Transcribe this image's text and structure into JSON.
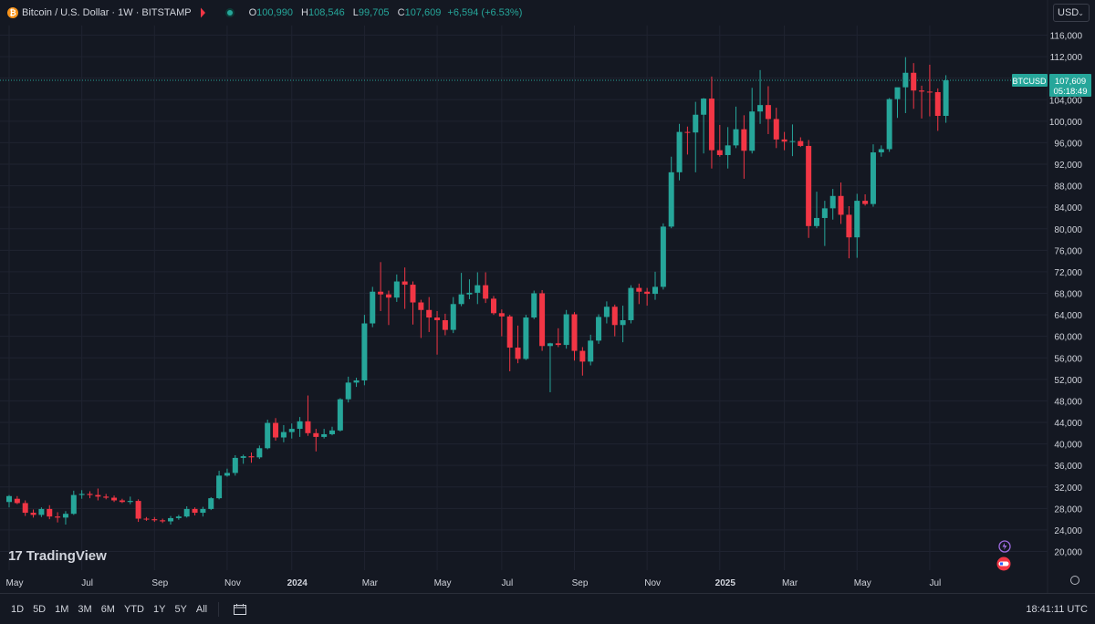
{
  "header": {
    "coin_icon": "bitcoin-icon",
    "symbol": "Bitcoin / U.S. Dollar · 1W · BITSTAMP",
    "ohlc": [
      {
        "key": "O",
        "value": "100,990"
      },
      {
        "key": "H",
        "value": "108,546"
      },
      {
        "key": "L",
        "value": "99,705"
      },
      {
        "key": "C",
        "value": "107,609"
      },
      {
        "key": "",
        "value": "+6,594 (+6.53%)"
      }
    ]
  },
  "currency": {
    "label": "USD"
  },
  "price_tag": {
    "symbol": "BTCUSD",
    "price": "107,609",
    "countdown": "05:18:49"
  },
  "logo": {
    "text": "TradingView"
  },
  "ranges": [
    "1D",
    "5D",
    "1M",
    "3M",
    "6M",
    "YTD",
    "1Y",
    "5Y",
    "All"
  ],
  "clock": "18:41:11 UTC",
  "colors": {
    "up": "#26a69a",
    "down": "#f23645",
    "background": "#141822",
    "grid": "#1f2330",
    "text": "#d1d4dc"
  },
  "chart_data": {
    "type": "candlestick",
    "title": "Bitcoin / U.S. Dollar · 1W · BITSTAMP",
    "ylim": [
      16000,
      120000
    ],
    "yticks": [
      20000,
      24000,
      28000,
      32000,
      36000,
      40000,
      44000,
      48000,
      52000,
      56000,
      60000,
      64000,
      68000,
      72000,
      76000,
      80000,
      84000,
      88000,
      92000,
      96000,
      100000,
      104000,
      108000,
      112000,
      116000
    ],
    "ytick_labels": [
      "20,000",
      "24,000",
      "28,000",
      "32,000",
      "36,000",
      "40,000",
      "44,000",
      "48,000",
      "52,000",
      "56,000",
      "60,000",
      "64,000",
      "68,000",
      "72,000",
      "76,000",
      "80,000",
      "84,000",
      "88,000",
      "92,000",
      "96,000",
      "100,000",
      "104,000",
      "108,000",
      "112,000",
      "116,000"
    ],
    "xtick_labels": [
      {
        "label": "May",
        "week": 0
      },
      {
        "label": "Jul",
        "week": 9
      },
      {
        "label": "Sep",
        "week": 18
      },
      {
        "label": "Nov",
        "week": 27
      },
      {
        "label": "2024",
        "week": 35
      },
      {
        "label": "Mar",
        "week": 44
      },
      {
        "label": "May",
        "week": 53
      },
      {
        "label": "Jul",
        "week": 61
      },
      {
        "label": "Sep",
        "week": 70
      },
      {
        "label": "Nov",
        "week": 79
      },
      {
        "label": "2025",
        "week": 88
      },
      {
        "label": "Mar",
        "week": 96
      },
      {
        "label": "May",
        "week": 105
      },
      {
        "label": "Jul",
        "week": 114
      }
    ],
    "last_price": 107609,
    "candles": [
      {
        "o": 29200,
        "h": 30500,
        "l": 28200,
        "c": 30300
      },
      {
        "o": 29800,
        "h": 30300,
        "l": 28800,
        "c": 29000
      },
      {
        "o": 29000,
        "h": 29500,
        "l": 26600,
        "c": 27200
      },
      {
        "o": 27200,
        "h": 27800,
        "l": 26300,
        "c": 26800
      },
      {
        "o": 26800,
        "h": 28200,
        "l": 26400,
        "c": 27900
      },
      {
        "o": 27900,
        "h": 28600,
        "l": 26000,
        "c": 26500
      },
      {
        "o": 26500,
        "h": 27300,
        "l": 25400,
        "c": 26300
      },
      {
        "o": 26300,
        "h": 27500,
        "l": 25000,
        "c": 27000
      },
      {
        "o": 27000,
        "h": 31300,
        "l": 26800,
        "c": 30500
      },
      {
        "o": 30500,
        "h": 31400,
        "l": 29800,
        "c": 30700
      },
      {
        "o": 30700,
        "h": 31200,
        "l": 29900,
        "c": 30500
      },
      {
        "o": 30500,
        "h": 31700,
        "l": 29500,
        "c": 30200
      },
      {
        "o": 30200,
        "h": 30700,
        "l": 29700,
        "c": 30000
      },
      {
        "o": 30000,
        "h": 30400,
        "l": 29200,
        "c": 29500
      },
      {
        "o": 29500,
        "h": 29800,
        "l": 29000,
        "c": 29200
      },
      {
        "o": 29200,
        "h": 30200,
        "l": 28800,
        "c": 29400
      },
      {
        "o": 29400,
        "h": 29700,
        "l": 25500,
        "c": 26100
      },
      {
        "o": 26100,
        "h": 26400,
        "l": 25700,
        "c": 26000
      },
      {
        "o": 26000,
        "h": 26400,
        "l": 25500,
        "c": 25800
      },
      {
        "o": 25800,
        "h": 26100,
        "l": 25300,
        "c": 25600
      },
      {
        "o": 25600,
        "h": 26600,
        "l": 25000,
        "c": 26200
      },
      {
        "o": 26200,
        "h": 26800,
        "l": 25900,
        "c": 26500
      },
      {
        "o": 26500,
        "h": 28400,
        "l": 26300,
        "c": 27900
      },
      {
        "o": 27900,
        "h": 28200,
        "l": 26700,
        "c": 27200
      },
      {
        "o": 27200,
        "h": 28300,
        "l": 26500,
        "c": 27900
      },
      {
        "o": 27900,
        "h": 30100,
        "l": 27700,
        "c": 29900
      },
      {
        "o": 29900,
        "h": 35000,
        "l": 29700,
        "c": 34100
      },
      {
        "o": 34100,
        "h": 35400,
        "l": 33900,
        "c": 34600
      },
      {
        "o": 34600,
        "h": 37900,
        "l": 34100,
        "c": 37400
      },
      {
        "o": 37400,
        "h": 38000,
        "l": 36300,
        "c": 37700
      },
      {
        "o": 37700,
        "h": 38400,
        "l": 36500,
        "c": 37500
      },
      {
        "o": 37500,
        "h": 39700,
        "l": 37200,
        "c": 39200
      },
      {
        "o": 39200,
        "h": 44500,
        "l": 39000,
        "c": 43900
      },
      {
        "o": 43900,
        "h": 44800,
        "l": 40600,
        "c": 41200
      },
      {
        "o": 41200,
        "h": 43500,
        "l": 40300,
        "c": 42200
      },
      {
        "o": 42200,
        "h": 43800,
        "l": 41000,
        "c": 42800
      },
      {
        "o": 42800,
        "h": 45000,
        "l": 41300,
        "c": 44200
      },
      {
        "o": 44200,
        "h": 49000,
        "l": 41500,
        "c": 42000
      },
      {
        "o": 42000,
        "h": 42800,
        "l": 38600,
        "c": 41300
      },
      {
        "o": 41300,
        "h": 42800,
        "l": 41000,
        "c": 41800
      },
      {
        "o": 41800,
        "h": 43200,
        "l": 41600,
        "c": 42500
      },
      {
        "o": 42500,
        "h": 48500,
        "l": 42300,
        "c": 48300
      },
      {
        "o": 48300,
        "h": 52500,
        "l": 47700,
        "c": 51400
      },
      {
        "o": 51400,
        "h": 52300,
        "l": 50600,
        "c": 51800
      },
      {
        "o": 51800,
        "h": 64000,
        "l": 50900,
        "c": 62400
      },
      {
        "o": 62400,
        "h": 69200,
        "l": 61700,
        "c": 68300
      },
      {
        "o": 68300,
        "h": 73800,
        "l": 64700,
        "c": 67800
      },
      {
        "o": 67800,
        "h": 68500,
        "l": 62100,
        "c": 67200
      },
      {
        "o": 67200,
        "h": 71500,
        "l": 66400,
        "c": 70200
      },
      {
        "o": 70200,
        "h": 72800,
        "l": 65100,
        "c": 69600
      },
      {
        "o": 69600,
        "h": 70200,
        "l": 62200,
        "c": 66300
      },
      {
        "o": 66300,
        "h": 66800,
        "l": 59700,
        "c": 64900
      },
      {
        "o": 64900,
        "h": 67300,
        "l": 60800,
        "c": 63500
      },
      {
        "o": 63500,
        "h": 64700,
        "l": 56600,
        "c": 63000
      },
      {
        "o": 63000,
        "h": 64200,
        "l": 60200,
        "c": 61200
      },
      {
        "o": 61200,
        "h": 67300,
        "l": 60600,
        "c": 66000
      },
      {
        "o": 66000,
        "h": 71800,
        "l": 65600,
        "c": 67800
      },
      {
        "o": 67800,
        "h": 70600,
        "l": 66900,
        "c": 68100
      },
      {
        "o": 68100,
        "h": 71900,
        "l": 66000,
        "c": 69500
      },
      {
        "o": 69500,
        "h": 71900,
        "l": 66200,
        "c": 67000
      },
      {
        "o": 67000,
        "h": 67500,
        "l": 64000,
        "c": 64300
      },
      {
        "o": 64300,
        "h": 65000,
        "l": 60000,
        "c": 63700
      },
      {
        "o": 63700,
        "h": 64000,
        "l": 53500,
        "c": 57900
      },
      {
        "o": 57900,
        "h": 62000,
        "l": 55000,
        "c": 55800
      },
      {
        "o": 55800,
        "h": 64000,
        "l": 55600,
        "c": 63500
      },
      {
        "o": 63500,
        "h": 68500,
        "l": 63200,
        "c": 68000
      },
      {
        "o": 68000,
        "h": 68600,
        "l": 57300,
        "c": 58200
      },
      {
        "o": 58200,
        "h": 58800,
        "l": 49600,
        "c": 58700
      },
      {
        "o": 58700,
        "h": 61500,
        "l": 58000,
        "c": 58400
      },
      {
        "o": 58400,
        "h": 64900,
        "l": 57700,
        "c": 64100
      },
      {
        "o": 64100,
        "h": 64500,
        "l": 55500,
        "c": 57300
      },
      {
        "o": 57300,
        "h": 58000,
        "l": 52700,
        "c": 55300
      },
      {
        "o": 55300,
        "h": 60300,
        "l": 54600,
        "c": 59200
      },
      {
        "o": 59200,
        "h": 64100,
        "l": 58600,
        "c": 63600
      },
      {
        "o": 63600,
        "h": 66500,
        "l": 62400,
        "c": 65500
      },
      {
        "o": 65500,
        "h": 65900,
        "l": 60000,
        "c": 62100
      },
      {
        "o": 62100,
        "h": 65700,
        "l": 58900,
        "c": 63000
      },
      {
        "o": 63000,
        "h": 69500,
        "l": 62400,
        "c": 69000
      },
      {
        "o": 69000,
        "h": 69800,
        "l": 66000,
        "c": 68300
      },
      {
        "o": 68300,
        "h": 69000,
        "l": 65700,
        "c": 67900
      },
      {
        "o": 67900,
        "h": 72000,
        "l": 66800,
        "c": 69200
      },
      {
        "o": 69200,
        "h": 81000,
        "l": 68700,
        "c": 80400
      },
      {
        "o": 80400,
        "h": 93400,
        "l": 80100,
        "c": 90500
      },
      {
        "o": 90500,
        "h": 99500,
        "l": 89000,
        "c": 98000
      },
      {
        "o": 98000,
        "h": 99000,
        "l": 93800,
        "c": 97900
      },
      {
        "o": 97900,
        "h": 103600,
        "l": 90500,
        "c": 101200
      },
      {
        "o": 101200,
        "h": 104300,
        "l": 94000,
        "c": 104200
      },
      {
        "o": 104200,
        "h": 108300,
        "l": 91200,
        "c": 94600
      },
      {
        "o": 94600,
        "h": 99300,
        "l": 93400,
        "c": 93700
      },
      {
        "o": 93700,
        "h": 98900,
        "l": 91200,
        "c": 95500
      },
      {
        "o": 95500,
        "h": 102700,
        "l": 95000,
        "c": 98500
      },
      {
        "o": 98500,
        "h": 101100,
        "l": 89300,
        "c": 94500
      },
      {
        "o": 94500,
        "h": 106200,
        "l": 94000,
        "c": 101800
      },
      {
        "o": 101800,
        "h": 109500,
        "l": 99500,
        "c": 103000
      },
      {
        "o": 103000,
        "h": 106500,
        "l": 97600,
        "c": 100400
      },
      {
        "o": 100400,
        "h": 102500,
        "l": 95000,
        "c": 96600
      },
      {
        "o": 96600,
        "h": 98000,
        "l": 94600,
        "c": 96200
      },
      {
        "o": 96200,
        "h": 99400,
        "l": 93500,
        "c": 96300
      },
      {
        "o": 96300,
        "h": 97000,
        "l": 95200,
        "c": 95400
      },
      {
        "o": 95400,
        "h": 96500,
        "l": 78300,
        "c": 80500
      },
      {
        "o": 80500,
        "h": 86900,
        "l": 80100,
        "c": 82000
      },
      {
        "o": 82000,
        "h": 85200,
        "l": 76800,
        "c": 83800
      },
      {
        "o": 83800,
        "h": 87400,
        "l": 81700,
        "c": 86100
      },
      {
        "o": 86100,
        "h": 88600,
        "l": 80900,
        "c": 82600
      },
      {
        "o": 82600,
        "h": 84200,
        "l": 74500,
        "c": 78400
      },
      {
        "o": 78400,
        "h": 86500,
        "l": 74600,
        "c": 85200
      },
      {
        "o": 85200,
        "h": 86400,
        "l": 84300,
        "c": 84600
      },
      {
        "o": 84600,
        "h": 95700,
        "l": 84100,
        "c": 94200
      },
      {
        "o": 94200,
        "h": 95500,
        "l": 93400,
        "c": 94800
      },
      {
        "o": 94800,
        "h": 104300,
        "l": 94300,
        "c": 104100
      },
      {
        "o": 104100,
        "h": 106000,
        "l": 100600,
        "c": 106300
      },
      {
        "o": 106300,
        "h": 111900,
        "l": 101500,
        "c": 109000
      },
      {
        "o": 109000,
        "h": 110800,
        "l": 102300,
        "c": 105700
      },
      {
        "o": 105700,
        "h": 106600,
        "l": 100500,
        "c": 105500
      },
      {
        "o": 105500,
        "h": 110500,
        "l": 100900,
        "c": 105400
      },
      {
        "o": 105400,
        "h": 106100,
        "l": 98200,
        "c": 100990
      },
      {
        "o": 100990,
        "h": 108546,
        "l": 99705,
        "c": 107609
      }
    ]
  }
}
